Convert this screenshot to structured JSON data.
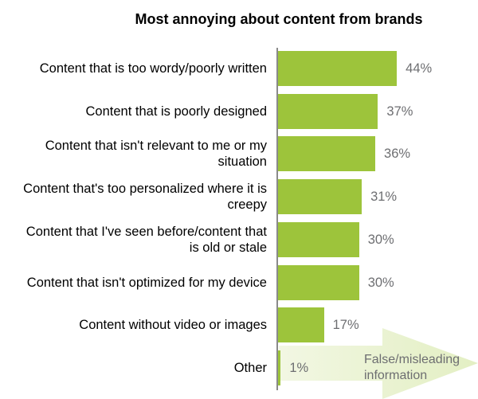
{
  "chart_data": {
    "type": "bar",
    "title": "Most annoying about content from brands",
    "categories": [
      "Content that is too wordy/poorly written",
      "Content that is poorly designed",
      "Content that isn't relevant to me or my situation",
      "Content that's too personalized where it is creepy",
      "Content that I've seen before/content that is old or stale",
      "Content that isn't optimized for my device",
      "Content without video or images",
      "Other"
    ],
    "values": [
      44,
      37,
      36,
      31,
      30,
      30,
      17,
      1
    ],
    "value_labels": [
      "44%",
      "37%",
      "36%",
      "31%",
      "30%",
      "30%",
      "17%",
      "1%"
    ],
    "color": "#9dc43b",
    "annotation": "False/misleading information"
  }
}
